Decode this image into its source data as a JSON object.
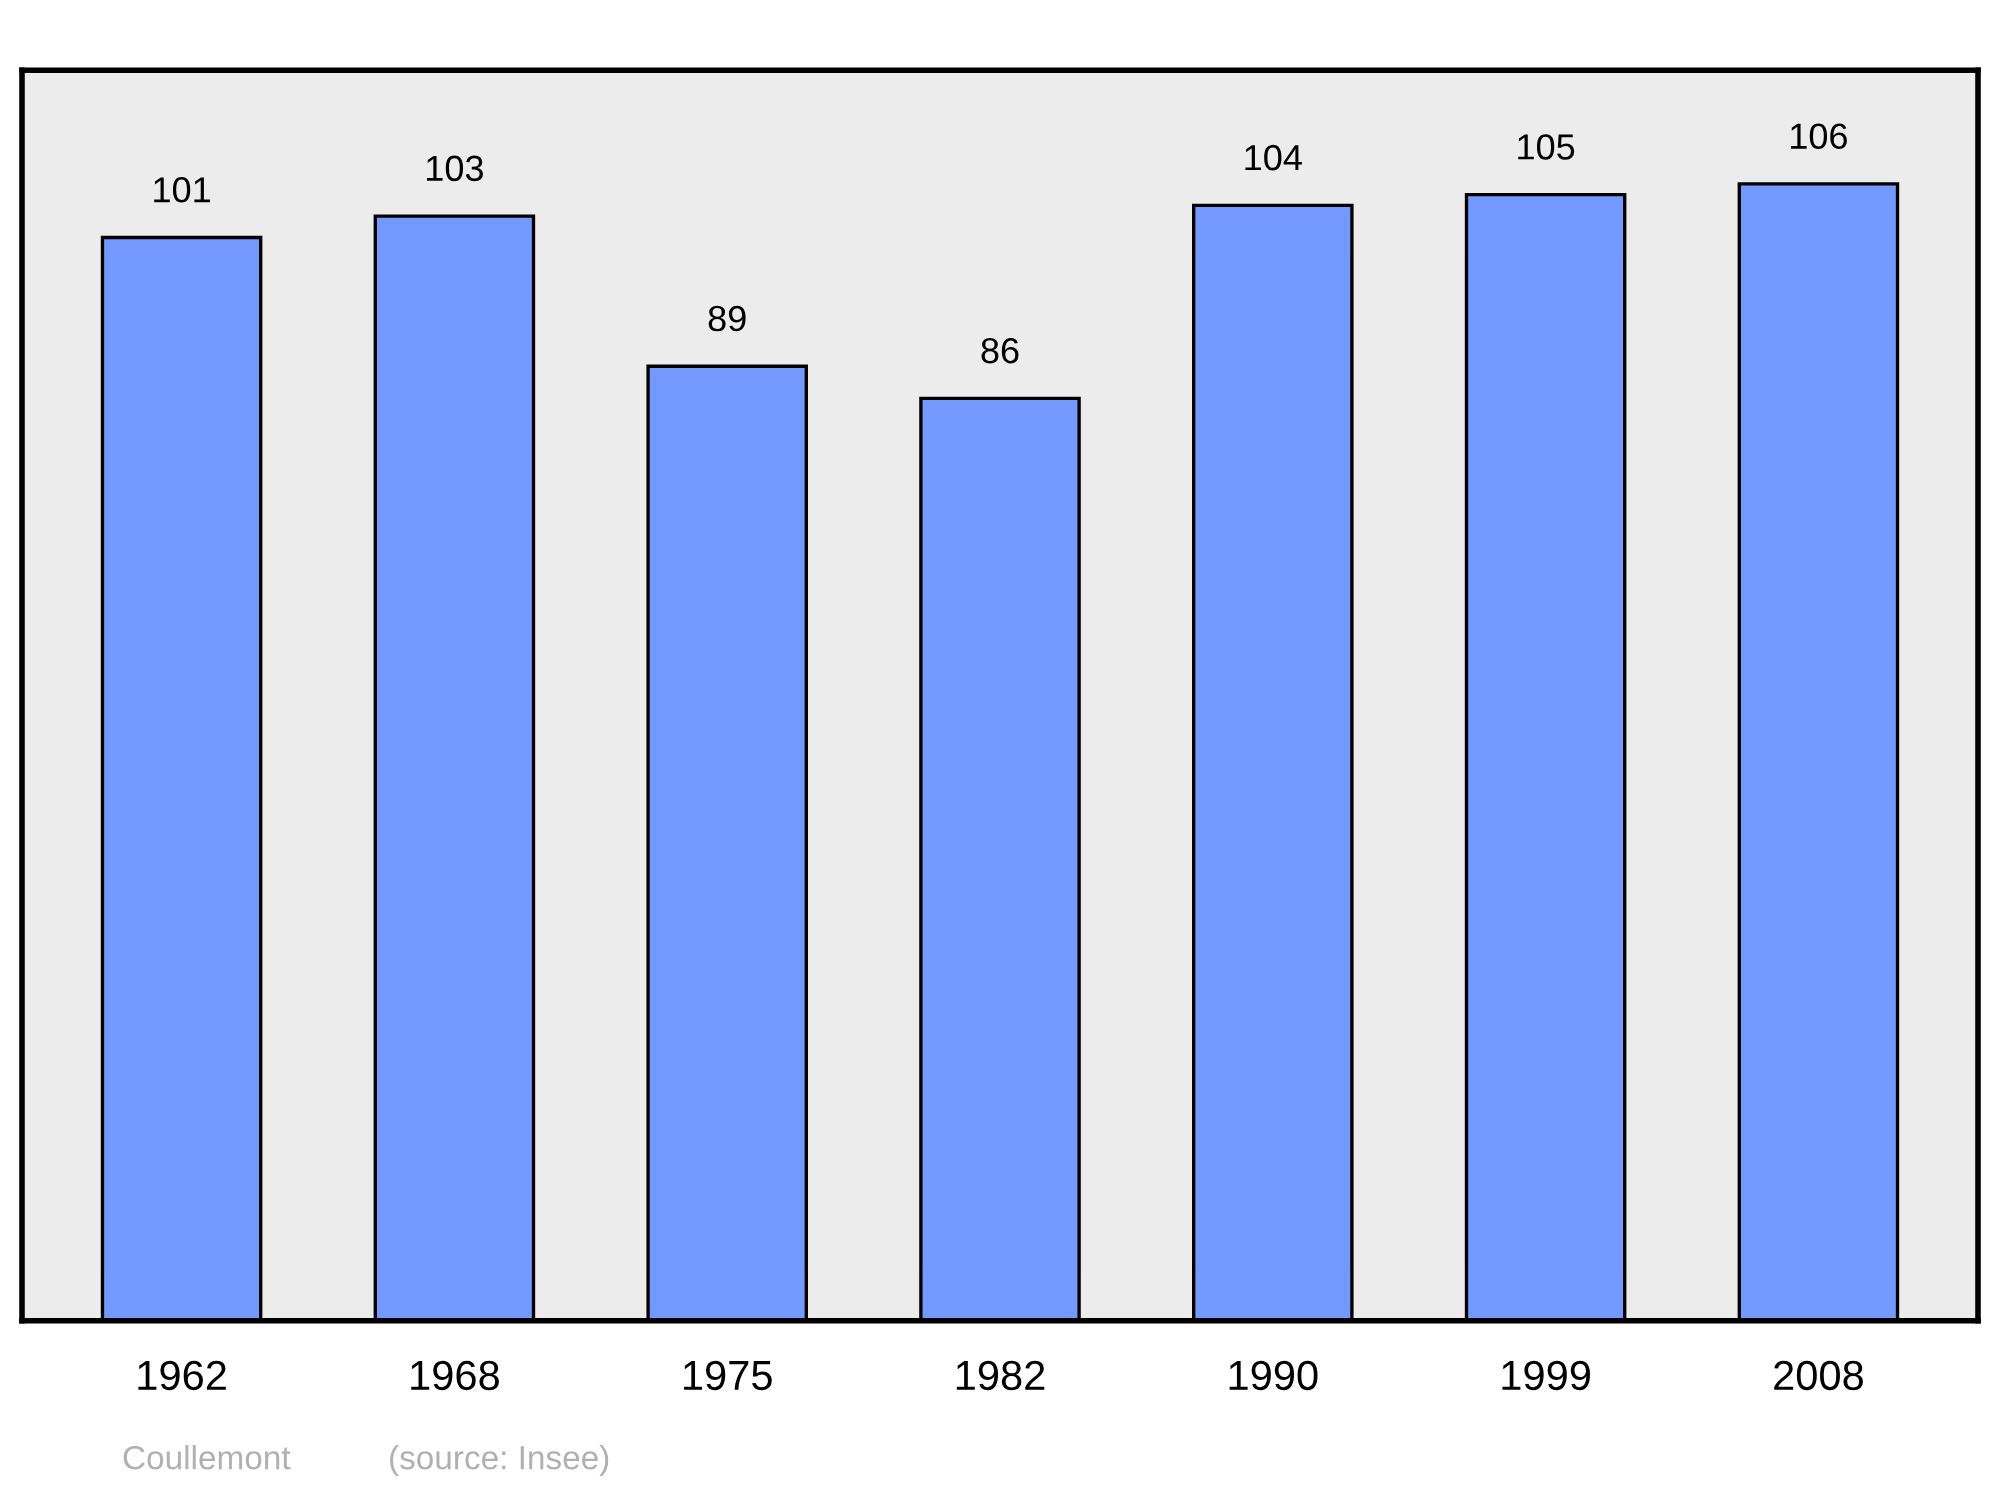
{
  "chart_data": {
    "type": "bar",
    "categories": [
      "1962",
      "1968",
      "1975",
      "1982",
      "1990",
      "1999",
      "2008"
    ],
    "values": [
      101,
      103,
      89,
      86,
      104,
      105,
      106
    ],
    "color": "#7399ff",
    "data_labels": true,
    "grid": false,
    "tick_labels": "x",
    "annotations": [
      "Coullemont",
      "(source: Insee)"
    ]
  }
}
